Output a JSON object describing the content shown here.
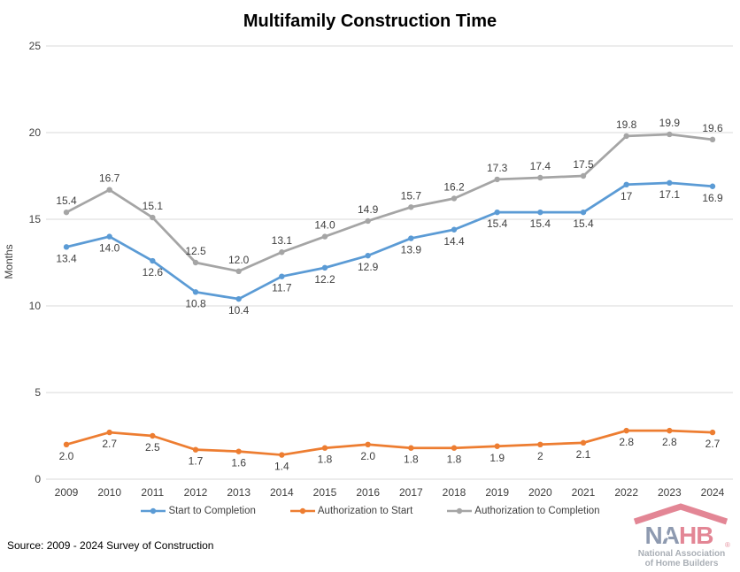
{
  "chart_data": {
    "type": "line",
    "title": "Multifamily Construction Time",
    "xlabel": "",
    "ylabel": "Months",
    "ylim": [
      0,
      25
    ],
    "yticks": [
      0,
      5,
      10,
      15,
      20,
      25
    ],
    "grid": true,
    "legend_position": "bottom",
    "categories": [
      "2009",
      "2010",
      "2011",
      "2012",
      "2013",
      "2014",
      "2015",
      "2016",
      "2017",
      "2018",
      "2019",
      "2020",
      "2021",
      "2022",
      "2023",
      "2024"
    ],
    "series": [
      {
        "name": "Start to Completion",
        "color": "#5B9BD5",
        "label_position": "below",
        "values": [
          13.4,
          14.0,
          12.6,
          10.8,
          10.4,
          11.7,
          12.2,
          12.9,
          13.9,
          14.4,
          15.4,
          15.4,
          15.4,
          17,
          17.1,
          16.9
        ],
        "labels": [
          "13.4",
          "14.0",
          "12.6",
          "10.8",
          "10.4",
          "11.7",
          "12.2",
          "12.9",
          "13.9",
          "14.4",
          "15.4",
          "15.4",
          "15.4",
          "17",
          "17.1",
          "16.9"
        ]
      },
      {
        "name": "Authorization to Start",
        "color": "#ED7D31",
        "label_position": "below",
        "values": [
          2.0,
          2.7,
          2.5,
          1.7,
          1.6,
          1.4,
          1.8,
          2.0,
          1.8,
          1.8,
          1.9,
          2,
          2.1,
          2.8,
          2.8,
          2.7
        ],
        "labels": [
          "2.0",
          "2.7",
          "2.5",
          "1.7",
          "1.6",
          "1.4",
          "1.8",
          "2.0",
          "1.8",
          "1.8",
          "1.9",
          "2",
          "2.1",
          "2.8",
          "2.8",
          "2.7"
        ]
      },
      {
        "name": "Authorization to Completion",
        "color": "#A5A5A5",
        "label_position": "above",
        "values": [
          15.4,
          16.7,
          15.1,
          12.5,
          12.0,
          13.1,
          14.0,
          14.9,
          15.7,
          16.2,
          17.3,
          17.4,
          17.5,
          19.8,
          19.9,
          19.6
        ],
        "labels": [
          "15.4",
          "16.7",
          "15.1",
          "12.5",
          "12.0",
          "13.1",
          "14.0",
          "14.9",
          "15.7",
          "16.2",
          "17.3",
          "17.4",
          "17.5",
          "19.8",
          "19.9",
          "19.6"
        ]
      }
    ],
    "style": {
      "grid_color": "#D9D9D9",
      "tick_label_color": "#404040",
      "data_label_color": "#404040"
    }
  },
  "source_note": "Source: 2009 - 2024 Survey of Construction",
  "logo": {
    "na": "NA",
    "hb": "HB",
    "reg": "®",
    "star": "★",
    "tagline_line1": "National Association",
    "tagline_line2": "of Home Builders",
    "roof_color": "#C8102E",
    "na_color": "#1F3864",
    "hb_color": "#C8102E",
    "tagline_color": "#55606E"
  }
}
